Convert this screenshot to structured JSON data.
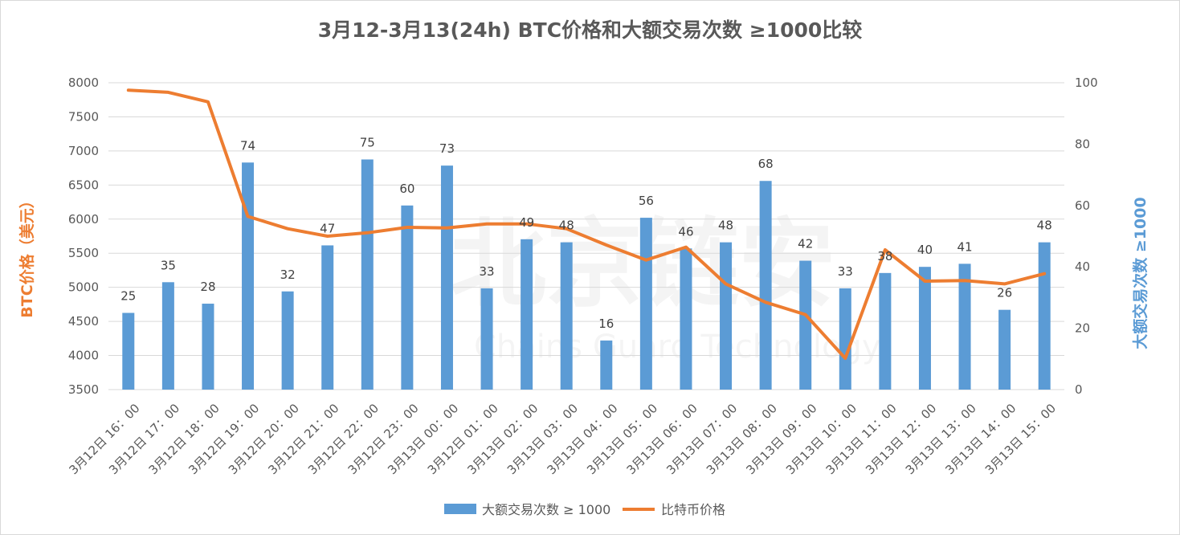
{
  "chart_data": {
    "type": "bar",
    "title": "3月12-3月13(24h) BTC价格和大额交易次数 ≥1000比较",
    "categories": [
      "3月12日 16：00",
      "3月12日 17：00",
      "3月12日 18：00",
      "3月12日 19：00",
      "3月12日 20：00",
      "3月12日 21：00",
      "3月12日 22：00",
      "3月12日 23：00",
      "3月13日 00：00",
      "3月12日 01：00",
      "3月13日 02：00",
      "3月13日 03：00",
      "3月13日 04：00",
      "3月13日 05：00",
      "3月13日 06：00",
      "3月13日 07：00",
      "3月13日 08：00",
      "3月13日 09：00",
      "3月13日 10：00",
      "3月13日 11：00",
      "3月13日 12：00",
      "3月13日 13：00",
      "3月13日 14：00",
      "3月13日 15：00"
    ],
    "series": [
      {
        "name": "大额交易次数 ≥ 1000",
        "type": "bar",
        "axis": "right",
        "color": "#5B9BD5",
        "values": [
          25,
          35,
          28,
          74,
          32,
          47,
          75,
          60,
          73,
          33,
          49,
          48,
          16,
          56,
          46,
          48,
          68,
          42,
          33,
          38,
          40,
          41,
          26,
          48
        ]
      },
      {
        "name": "比特币价格",
        "type": "line",
        "axis": "left",
        "color": "#ED7D31",
        "values": [
          7890,
          7860,
          7720,
          6040,
          5860,
          5750,
          5800,
          5880,
          5870,
          5930,
          5930,
          5860,
          5620,
          5400,
          5590,
          5050,
          4780,
          4600,
          3960,
          5550,
          5090,
          5100,
          5050,
          5200
        ]
      }
    ],
    "y_left": {
      "label": "BTC价格（美元）",
      "min": 3500,
      "max": 8000,
      "step": 500
    },
    "y_right": {
      "label": "大额交易次数 ≥1000",
      "min": 0,
      "max": 100,
      "step": 20
    },
    "grid": true,
    "legend": "bottom",
    "watermark": {
      "main": "北京链安",
      "sub": "Chains Guard Technology"
    }
  }
}
